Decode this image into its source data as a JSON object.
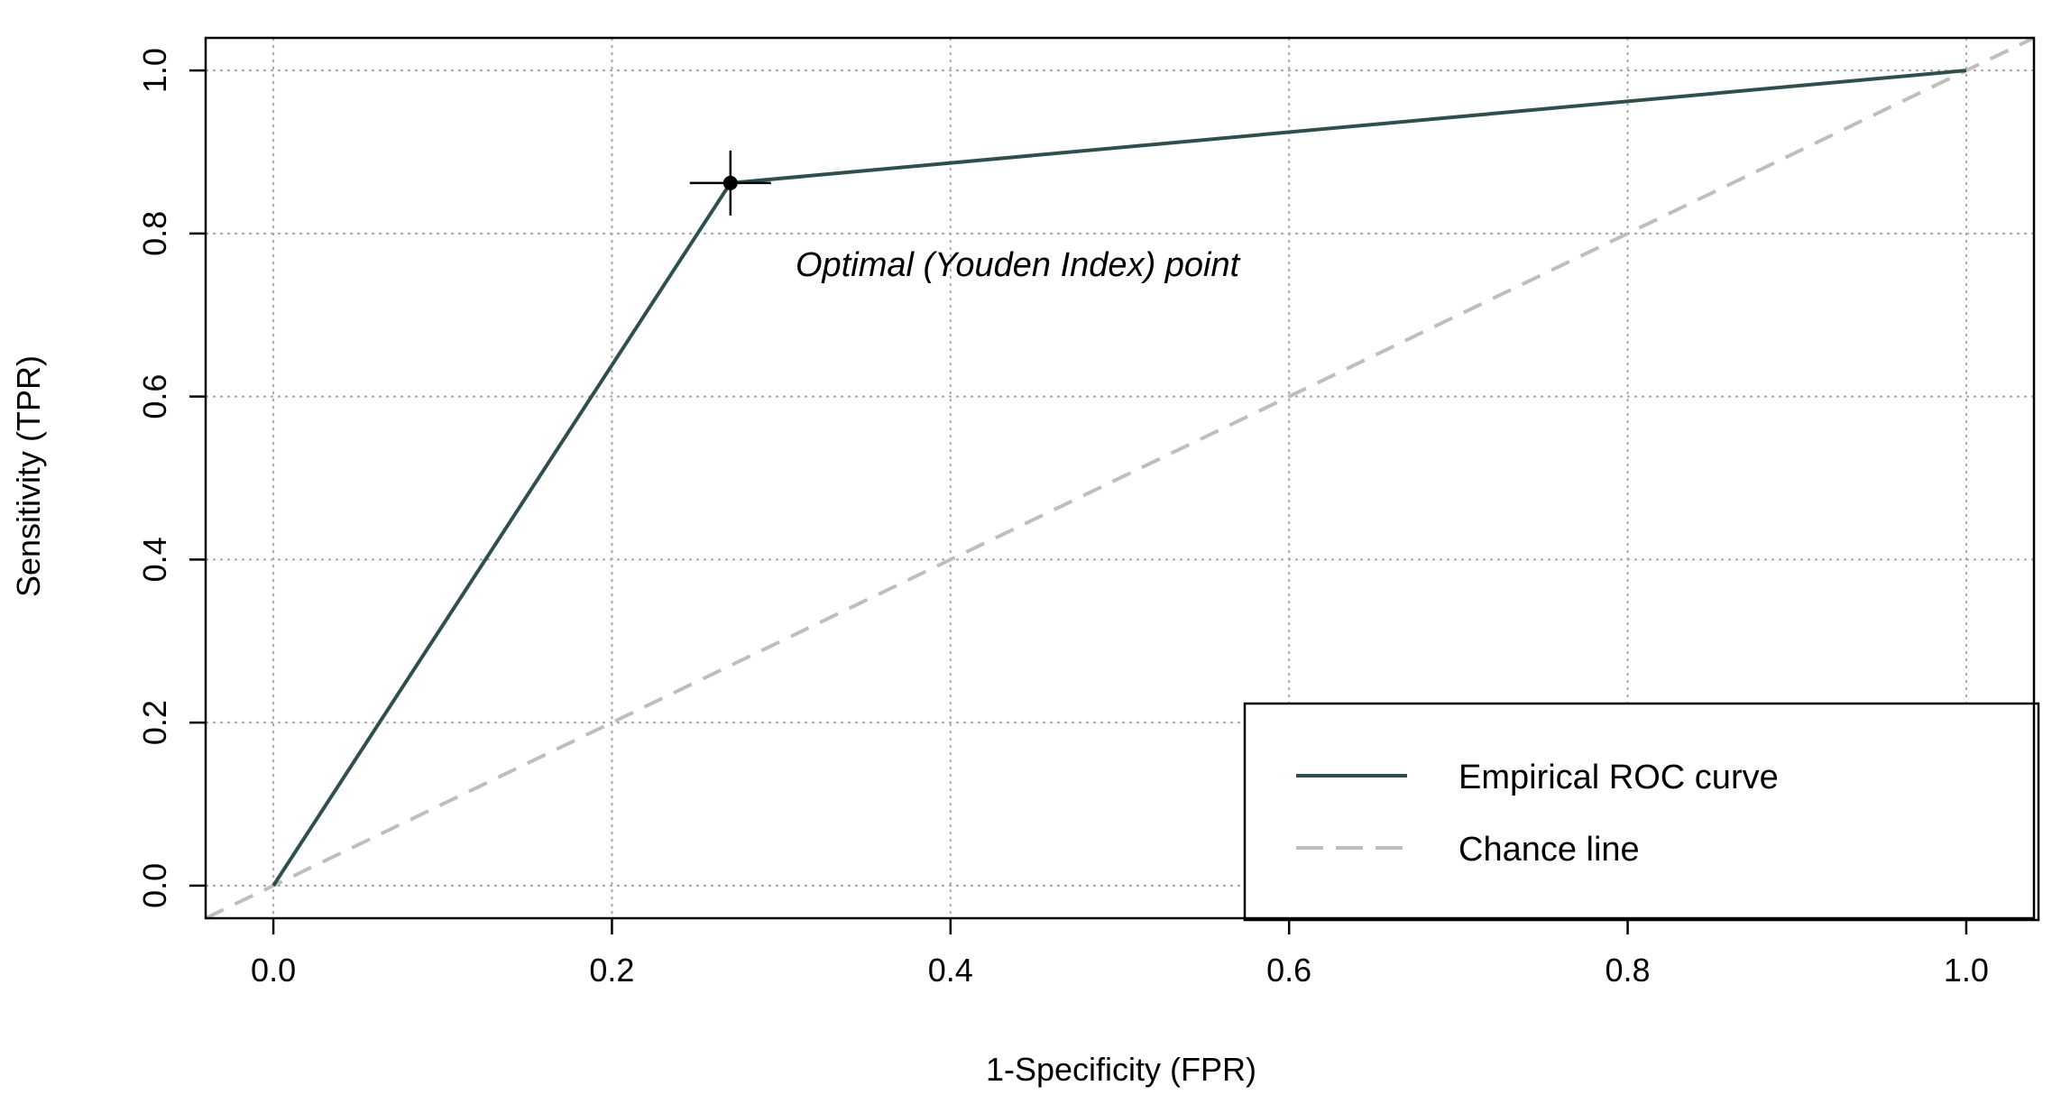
{
  "chart_data": {
    "type": "line",
    "title": "",
    "xlabel": "1-Specificity (FPR)",
    "ylabel": "Sensitivity (TPR)",
    "xlim": [
      -0.04,
      1.04
    ],
    "ylim": [
      -0.04,
      1.04
    ],
    "x_ticks": [
      "0.0",
      "0.2",
      "0.4",
      "0.6",
      "0.8",
      "1.0"
    ],
    "y_ticks": [
      "0.0",
      "0.2",
      "0.4",
      "0.6",
      "0.8",
      "1.0"
    ],
    "grid": true,
    "series": [
      {
        "name": "Empirical ROC curve",
        "color": "#2f4f4f",
        "style": "solid",
        "x": [
          0.0,
          0.27,
          1.0
        ],
        "y": [
          0.0,
          0.862,
          1.0
        ]
      },
      {
        "name": "Chance line",
        "color": "#bebebe",
        "style": "dashed",
        "x": [
          -0.04,
          1.04
        ],
        "y": [
          -0.04,
          1.04
        ]
      }
    ],
    "optimal_point": {
      "x": 0.27,
      "y": 0.862,
      "label": "Optimal (Youden Index) point"
    },
    "legend": {
      "placement": "bottom-right",
      "entries": [
        "Empirical ROC curve",
        "Chance line"
      ]
    }
  }
}
